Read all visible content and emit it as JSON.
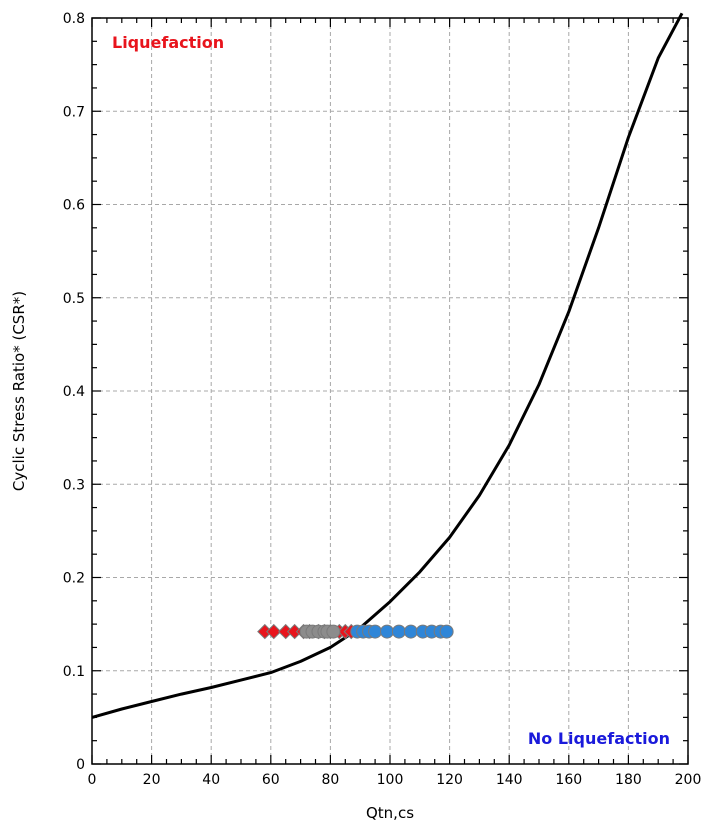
{
  "chart_data": {
    "type": "scatter",
    "title": "",
    "xlabel": "Qtn,cs",
    "ylabel": "Cyclic Stress Ratio* (CSR*)",
    "xlim": [
      0,
      200
    ],
    "ylim": [
      0,
      0.8
    ],
    "x_ticks": [
      "0",
      "20",
      "40",
      "60",
      "80",
      "100",
      "120",
      "140",
      "160",
      "180",
      "200"
    ],
    "y_ticks": [
      "0",
      "0.1",
      "0.2",
      "0.3",
      "0.4",
      "0.5",
      "0.6",
      "0.7",
      "0.8"
    ],
    "x_tick_values": [
      0,
      20,
      40,
      60,
      80,
      100,
      120,
      140,
      160,
      180,
      200
    ],
    "y_tick_values": [
      0,
      0.1,
      0.2,
      0.3,
      0.4,
      0.5,
      0.6,
      0.7,
      0.8
    ],
    "grid": true,
    "annotations": {
      "liquefaction": "Liquefaction",
      "no_liquefaction": "No Liquefaction"
    },
    "colors": {
      "curve": "#000000",
      "liquefaction": "#e8141c",
      "transition": "#8c8c8c",
      "no_liquefaction": "#2f86d8",
      "marker_edge": "#7a7a7a",
      "grid": "#a8a8a8",
      "liquefaction_text": "#e8141c",
      "no_liquefaction_text": "#1a1adb"
    },
    "boundary_curve": {
      "x": [
        0,
        10,
        20,
        30,
        40,
        50,
        60,
        70,
        80,
        90,
        100,
        110,
        120,
        130,
        140,
        150,
        160,
        170,
        180,
        190,
        198
      ],
      "y": [
        0.05,
        0.059,
        0.067,
        0.075,
        0.082,
        0.09,
        0.098,
        0.11,
        0.125,
        0.146,
        0.174,
        0.206,
        0.243,
        0.288,
        0.342,
        0.407,
        0.485,
        0.575,
        0.672,
        0.757,
        0.805
      ]
    },
    "series": [
      {
        "marker": "diamond",
        "color": "liquefaction",
        "x": [
          58,
          61,
          65,
          68,
          71,
          73,
          76,
          78,
          80,
          83,
          85,
          87
        ],
        "y": [
          0.142,
          0.142,
          0.142,
          0.142,
          0.142,
          0.142,
          0.142,
          0.142,
          0.142,
          0.142,
          0.142,
          0.142
        ]
      },
      {
        "marker": "circle",
        "color": "transition",
        "x": [
          72,
          74,
          76,
          78,
          79,
          81
        ],
        "y": [
          0.142,
          0.142,
          0.142,
          0.142,
          0.142,
          0.142
        ]
      },
      {
        "marker": "circle",
        "color": "no_liquefaction",
        "x": [
          89,
          91,
          93,
          95,
          99,
          103,
          107,
          111,
          114,
          117,
          119
        ],
        "y": [
          0.142,
          0.142,
          0.142,
          0.142,
          0.142,
          0.142,
          0.142,
          0.142,
          0.142,
          0.142,
          0.142
        ]
      }
    ]
  }
}
